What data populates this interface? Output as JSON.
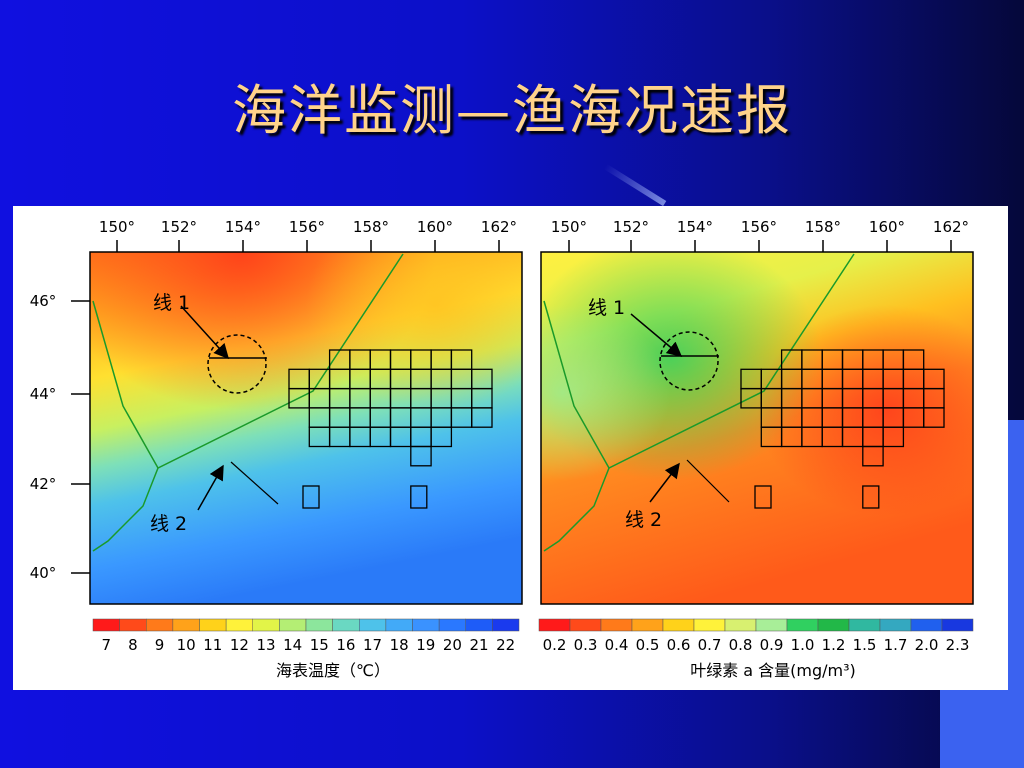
{
  "slide": {
    "title": "海洋监测—渔海况速报"
  },
  "figure": {
    "lon_ticks": [
      "150°",
      "152°",
      "154°",
      "156°",
      "158°",
      "160°",
      "162°"
    ],
    "lat_ticks": [
      "46°",
      "44°",
      "42°",
      "40°"
    ],
    "left_map": {
      "line1_label": "线 1",
      "line2_label": "线 2",
      "colorbar_ticks": [
        "7",
        "8",
        "9",
        "10",
        "11",
        "12",
        "13",
        "14",
        "15",
        "16",
        "17",
        "18",
        "19",
        "20",
        "21",
        "22"
      ],
      "colorbar_title": "海表温度（℃）",
      "colors": [
        "#ff1a1a",
        "#ff4a1a",
        "#ff7a1a",
        "#ffa21a",
        "#ffd21a",
        "#fff23a",
        "#e2f448",
        "#b4ee74",
        "#8ce69c",
        "#6ad8c2",
        "#4ec2ea",
        "#42aaf8",
        "#3a92ff",
        "#2a78ff",
        "#1e5cf8",
        "#1a3aee"
      ]
    },
    "right_map": {
      "line1_label": "线 1",
      "line2_label": "线 2",
      "colorbar_ticks": [
        "0.2",
        "0.3",
        "0.4",
        "0.5",
        "0.6",
        "0.7",
        "0.8",
        "0.9",
        "1.0",
        "1.2",
        "1.5",
        "1.7",
        "2.0",
        "2.3"
      ],
      "colorbar_title": "叶绿素 a 含量(mg/m³)",
      "colors": [
        "#ff1a1a",
        "#ff4a1a",
        "#ff7a1a",
        "#ffa21a",
        "#ffd21a",
        "#fff23a",
        "#d8f070",
        "#a8ee98",
        "#30d060",
        "#22b848",
        "#30b8a0",
        "#34a8c0",
        "#2060ee",
        "#1838e0"
      ]
    }
  }
}
